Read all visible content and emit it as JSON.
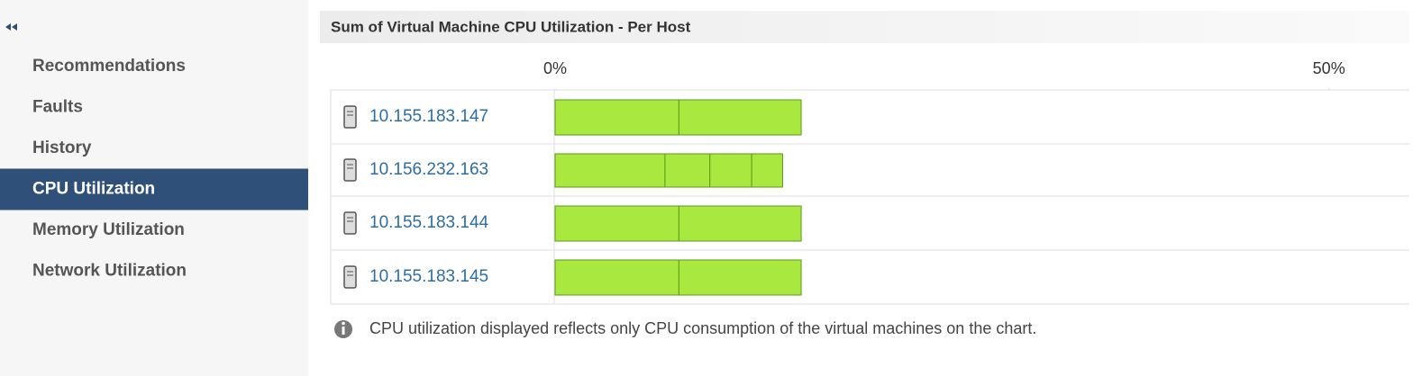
{
  "sidebar": {
    "items": [
      "Recommendations",
      "Faults",
      "History",
      "CPU Utilization",
      "Memory Utilization",
      "Network Utilization"
    ],
    "selected": 3
  },
  "chart_data": {
    "type": "bar",
    "orientation": "horizontal",
    "stacked": true,
    "title": "Sum of Virtual Machine CPU Utilization - Per Host",
    "categories": [
      "10.155.183.147",
      "10.156.232.163",
      "10.155.183.144",
      "10.155.183.145"
    ],
    "series": [
      {
        "color": "#a8e83f",
        "values": [
          8.0,
          7.1,
          8.0,
          8.0
        ]
      },
      {
        "color": "#a8e83f",
        "values": [
          7.9,
          2.9,
          7.9,
          7.9
        ]
      },
      {
        "color": "#a8e83f",
        "values": [
          null,
          2.7,
          null,
          null
        ]
      },
      {
        "color": "#a8e83f",
        "values": [
          null,
          2.0,
          null,
          null
        ]
      }
    ],
    "xlim": [
      0,
      55.2
    ],
    "xticks": [
      {
        "value": 0,
        "label": "0%"
      },
      {
        "value": 50,
        "label": "50%"
      }
    ]
  },
  "note": "CPU utilization displayed reflects only CPU consumption of the virtual machines on the chart."
}
